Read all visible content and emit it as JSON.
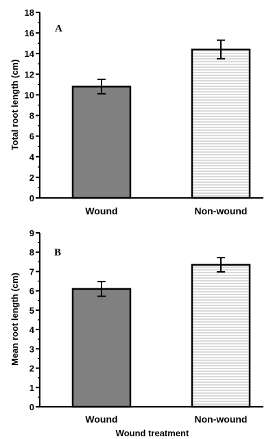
{
  "chart_data": [
    {
      "type": "bar",
      "panel_label": "A",
      "title": "",
      "categories": [
        "Wound",
        "Non-wound"
      ],
      "values": [
        10.8,
        14.4
      ],
      "errors": [
        0.7,
        0.9
      ],
      "ylabel": "Total root length (cm)",
      "xlabel": "",
      "ylim": [
        0,
        18
      ],
      "yticks": [
        "0",
        "2",
        "4",
        "6",
        "8",
        "10",
        "12",
        "14",
        "16",
        "18"
      ],
      "bar_fills": [
        "solid-gray",
        "horizontal-lines"
      ],
      "colors": {
        "solid": "#808080",
        "hatch_line": "#b3b3b3",
        "outline": "#000000"
      },
      "grid": false
    },
    {
      "type": "bar",
      "panel_label": "B",
      "title": "",
      "categories": [
        "Wound",
        "Non-wound"
      ],
      "values": [
        6.1,
        7.35
      ],
      "errors": [
        0.38,
        0.37
      ],
      "ylabel": "Mean root length (cm)",
      "xlabel": "Wound treatment",
      "ylim": [
        0,
        9
      ],
      "yticks": [
        "0",
        "1",
        "2",
        "3",
        "4",
        "5",
        "6",
        "7",
        "8",
        "9"
      ],
      "bar_fills": [
        "solid-gray",
        "horizontal-lines"
      ],
      "colors": {
        "solid": "#808080",
        "hatch_line": "#b3b3b3",
        "outline": "#000000"
      },
      "grid": false
    }
  ]
}
